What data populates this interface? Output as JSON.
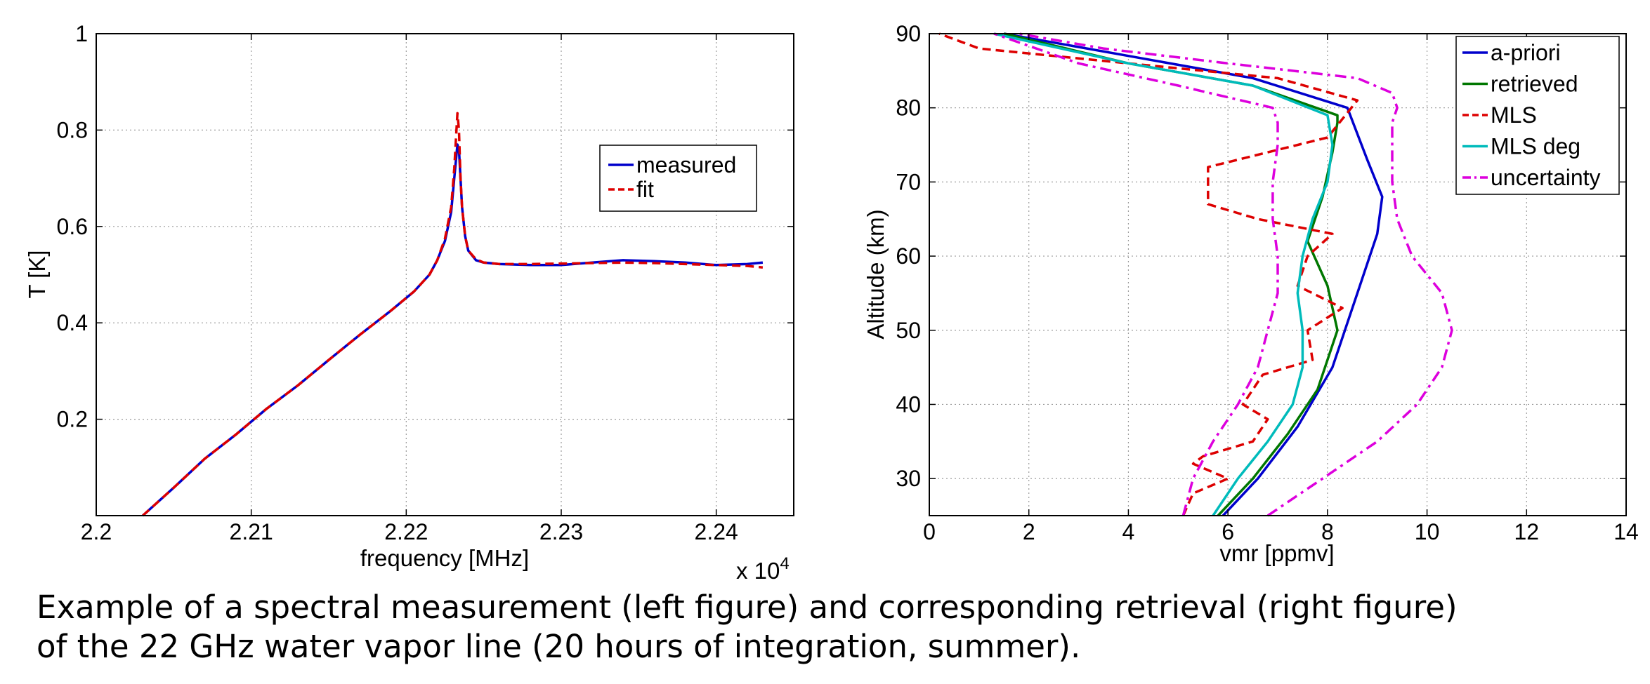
{
  "chart_data": [
    {
      "type": "line",
      "xlabel": "frequency [MHz]",
      "ylabel": "T [K]",
      "x_multiplier": "x 10",
      "x_multiplier_exp": "4",
      "xlim": [
        2.2,
        2.245
      ],
      "ylim": [
        0,
        1
      ],
      "xticks": [
        "2.2",
        "2.21",
        "2.22",
        "2.23",
        "2.24"
      ],
      "yticks": [
        "0.2",
        "0.4",
        "0.6",
        "0.8",
        "1"
      ],
      "grid": true,
      "legend_position": "top-right",
      "series": [
        {
          "name": "measured",
          "color": "#0000cc",
          "style": "solid",
          "x": [
            2.203,
            2.205,
            2.207,
            2.209,
            2.211,
            2.213,
            2.215,
            2.217,
            2.219,
            2.2205,
            2.2215,
            2.222,
            2.2225,
            2.2229,
            2.2231,
            2.2233,
            2.2234,
            2.2235,
            2.2236,
            2.2238,
            2.224,
            2.2245,
            2.225,
            2.226,
            2.228,
            2.23,
            2.232,
            2.234,
            2.236,
            2.238,
            2.24,
            2.242,
            2.243
          ],
          "y": [
            0.0,
            0.058,
            0.118,
            0.168,
            0.222,
            0.27,
            0.323,
            0.375,
            0.425,
            0.465,
            0.5,
            0.53,
            0.57,
            0.63,
            0.7,
            0.77,
            0.76,
            0.7,
            0.64,
            0.58,
            0.55,
            0.53,
            0.525,
            0.522,
            0.52,
            0.52,
            0.525,
            0.53,
            0.528,
            0.525,
            0.52,
            0.522,
            0.525
          ]
        },
        {
          "name": "fit",
          "color": "#dd0000",
          "style": "dashed",
          "x": [
            2.203,
            2.205,
            2.207,
            2.209,
            2.211,
            2.213,
            2.215,
            2.217,
            2.219,
            2.2205,
            2.2215,
            2.222,
            2.2225,
            2.2229,
            2.2231,
            2.2233,
            2.2234,
            2.2235,
            2.2236,
            2.2238,
            2.224,
            2.2245,
            2.225,
            2.226,
            2.228,
            2.23,
            2.232,
            2.234,
            2.236,
            2.238,
            2.24,
            2.242,
            2.243
          ],
          "y": [
            0.0,
            0.058,
            0.118,
            0.168,
            0.222,
            0.27,
            0.323,
            0.375,
            0.425,
            0.465,
            0.5,
            0.53,
            0.575,
            0.64,
            0.72,
            0.835,
            0.8,
            0.7,
            0.64,
            0.58,
            0.55,
            0.532,
            0.525,
            0.522,
            0.522,
            0.523,
            0.524,
            0.525,
            0.524,
            0.522,
            0.52,
            0.518,
            0.515
          ]
        }
      ]
    },
    {
      "type": "line",
      "xlabel": "vmr [ppmv]",
      "ylabel": "Altitude (km)",
      "xlim": [
        0,
        14
      ],
      "ylim": [
        25,
        90
      ],
      "xticks": [
        "0",
        "2",
        "4",
        "6",
        "8",
        "10",
        "12",
        "14"
      ],
      "yticks": [
        "30",
        "40",
        "50",
        "60",
        "70",
        "80",
        "90"
      ],
      "grid": true,
      "legend_position": "top-right",
      "series": [
        {
          "name": "a-priori",
          "color": "#0000cc",
          "style": "solid",
          "x": [
            5.9,
            6.6,
            7.4,
            8.1,
            8.6,
            9.0,
            9.1,
            8.8,
            8.4,
            6.5,
            4.0,
            1.5
          ],
          "y": [
            25,
            30,
            37,
            45,
            55,
            63,
            68,
            73,
            80,
            84,
            87,
            90
          ]
        },
        {
          "name": "retrieved",
          "color": "#007700",
          "style": "solid",
          "x": [
            5.8,
            6.5,
            7.2,
            7.8,
            8.2,
            8.0,
            7.6,
            7.9,
            8.1,
            8.2,
            8.2,
            6.5,
            4.0,
            1.5
          ],
          "y": [
            25,
            30,
            36,
            42,
            50,
            56,
            62,
            68,
            74,
            78,
            79,
            83,
            86,
            90
          ]
        },
        {
          "name": "MLS",
          "color": "#dd0000",
          "style": "dashed",
          "x": [
            5.1,
            5.3,
            6.0,
            5.3,
            5.5,
            6.5,
            6.8,
            6.3,
            6.7,
            7.7,
            7.6,
            8.3,
            7.4,
            7.6,
            8.1,
            6.6,
            5.6,
            5.6,
            6.8,
            8.0,
            8.6,
            7.0,
            4.0,
            1.0,
            0.2
          ],
          "y": [
            25,
            28,
            30,
            32,
            33,
            35,
            38,
            40,
            44,
            46,
            50,
            53,
            56,
            60,
            63,
            65,
            67,
            72,
            74,
            76,
            81,
            84,
            86,
            88,
            90
          ]
        },
        {
          "name": "MLS deg",
          "color": "#00bbbb",
          "style": "solid",
          "x": [
            5.7,
            6.2,
            6.8,
            7.3,
            7.5,
            7.5,
            7.4,
            7.5,
            7.7,
            8.0,
            8.1,
            8.0,
            6.5,
            4.0,
            1.3
          ],
          "y": [
            25,
            30,
            35,
            40,
            45,
            50,
            55,
            60,
            65,
            70,
            75,
            79,
            83,
            86,
            90
          ]
        },
        {
          "name": "uncertainty",
          "color": "#dd00dd",
          "style": "dashdot",
          "x": [
            5.1,
            5.3,
            5.7,
            6.2,
            6.6,
            6.8,
            7.0,
            7.0,
            6.9,
            6.9,
            7.0,
            7.0,
            6.9,
            5.0,
            3.0,
            1.3
          ],
          "y": [
            25,
            30,
            35,
            40,
            45,
            50,
            55,
            60,
            65,
            70,
            75,
            78,
            80,
            83,
            86,
            90
          ]
        },
        {
          "name": "uncertainty",
          "color": "#dd00dd",
          "style": "dashdot",
          "x": [
            6.8,
            7.9,
            9.0,
            9.8,
            10.3,
            10.5,
            10.3,
            9.7,
            9.4,
            9.3,
            9.3,
            9.3,
            9.4,
            9.3,
            8.6,
            6.0,
            3.5,
            1.8
          ],
          "y": [
            25,
            30,
            35,
            40,
            45,
            50,
            55,
            60,
            65,
            70,
            75,
            78,
            80,
            82,
            84,
            86,
            88,
            90
          ]
        }
      ]
    }
  ],
  "caption": {
    "line1": "Example of a spectral measurement (left figure) and corresponding retrieval (right figure)",
    "line2": "of the 22 GHz water vapor line (20 hours of integration, summer)."
  }
}
